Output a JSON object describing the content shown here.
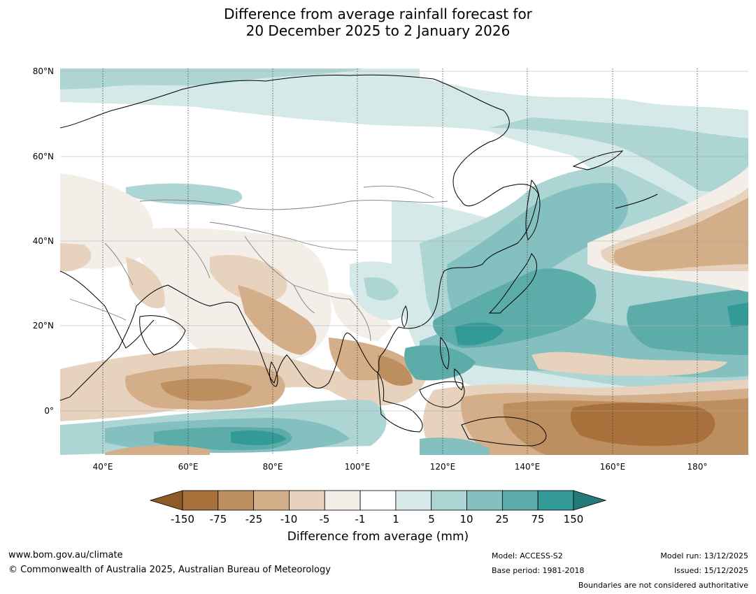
{
  "title": {
    "line1": "Difference from average rainfall forecast for",
    "line2": "20 December 2025 to 2 January 2026"
  },
  "map": {
    "lat_labels": [
      "80°N",
      "60°N",
      "40°N",
      "20°N",
      "0°"
    ],
    "lon_labels": [
      "40°E",
      "60°E",
      "80°E",
      "100°E",
      "120°E",
      "140°E",
      "160°E",
      "180°"
    ],
    "extent": {
      "lon_min": 30,
      "lon_max": 192,
      "lat_min": -10,
      "lat_max": 81
    }
  },
  "colorbar": {
    "ticks": [
      "-150",
      "-75",
      "-25",
      "-10",
      "-5",
      "-1",
      "1",
      "5",
      "10",
      "25",
      "75",
      "150"
    ],
    "colors": [
      "#a8703a",
      "#be8f5e",
      "#d3ae89",
      "#e6d2bd",
      "#f3eee8",
      "#ffffff",
      "#d4e9e8",
      "#acd5d4",
      "#84c0bf",
      "#5cacaa",
      "#349a98"
    ],
    "under_color": "#8f5a28",
    "over_color": "#247a77",
    "label": "Difference from average (mm)"
  },
  "footer": {
    "website": "www.bom.gov.au/climate",
    "copyright": "© Commonwealth of Australia 2025, Australian Bureau of Meteorology",
    "model": "Model: ACCESS-S2",
    "base_period": "Base period: 1981-2018",
    "model_run": "Model run: 13/12/2025",
    "issued": "Issued: 15/12/2025",
    "boundaries_note": "Boundaries are not considered authoritative"
  }
}
